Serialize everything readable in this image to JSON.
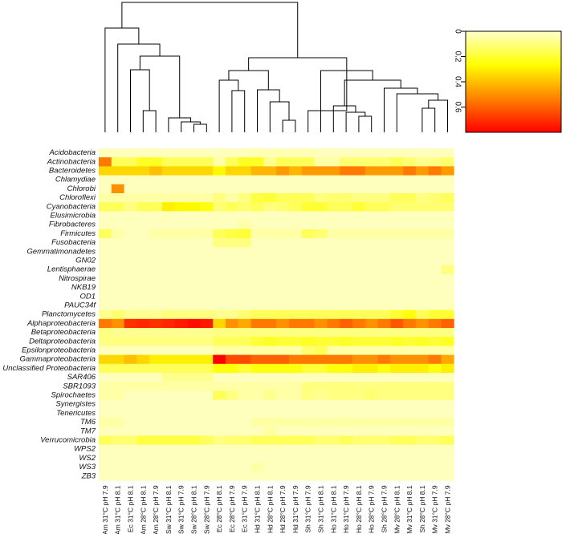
{
  "chart_data": {
    "type": "heatmap",
    "title": "",
    "xlabel": "",
    "ylabel": "",
    "rows": [
      "Acidobacteria",
      "Actinobacteria",
      "Bacteroidetes",
      "Chlamydiae",
      "Chlorobi",
      "Chloroflexi",
      "Cyanobacteria",
      "Elusimicrobia",
      "Fibrobacteres",
      "Firmicutes",
      "Fusobacteria",
      "Gemmatimonadetes",
      "GN02",
      "Lentisphaerae",
      "Nitrospirae",
      "NKB19",
      "OD1",
      "PAUC34f",
      "Planctomycetes",
      "Alphaproteobacteria",
      "Betaproteobacteria",
      "Deltaproteobacteria",
      "Epsilonproteobacteria",
      "Gammaproteobacteria",
      "Unclassified Proteobacteria",
      "SAR406",
      "SBR1093",
      "Spirochaetes",
      "Synergistes",
      "Tenericutes",
      "TM6",
      "TM7",
      "Verrucomicrobia",
      "WPS2",
      "WS2",
      "WS3",
      "ZB3"
    ],
    "columns": [
      "Am 31°C pH 7.9",
      "Am 31°C pH 8.1",
      "Ec 31°C pH 8.1",
      "Am 28°C pH 8.1",
      "Am 28°C pH 7.9",
      "Sw 31°C pH 8.1",
      "Sw 31°C pH 7.9",
      "Sw 28°C pH 8.1",
      "Sw 28°C pH 7.9",
      "Ec 28°C pH 8.1",
      "Ec 28°C pH 7.9",
      "Ec 31°C pH 7.9",
      "Hd 31°C pH 8.1",
      "Hd 28°C pH 8.1",
      "Hd 28°C pH 7.9",
      "Hd 31°C pH 7.9",
      "Sh 31°C pH 7.9",
      "Sh 31°C pH 8.1",
      "Ho 31°C pH 8.1",
      "Ho 31°C pH 7.9",
      "Ho 28°C pH 8.1",
      "Ho 28°C pH 7.9",
      "Sh 28°C pH 7.9",
      "Mv 28°C pH 8.1",
      "Mv 31°C pH 8.1",
      "Sh 28°C pH 8.1",
      "Mv 31°C pH 7.9",
      "Mv 28°C pH 7.9"
    ],
    "values": [
      [
        0.02,
        0.02,
        0.02,
        0.02,
        0.02,
        0.02,
        0.02,
        0.02,
        0.02,
        0.02,
        0.02,
        0.02,
        0.03,
        0.03,
        0.03,
        0.03,
        0.03,
        0.02,
        0.02,
        0.02,
        0.02,
        0.02,
        0.02,
        0.02,
        0.02,
        0.02,
        0.02,
        0.02
      ],
      [
        0.55,
        0.15,
        0.15,
        0.22,
        0.22,
        0.15,
        0.15,
        0.15,
        0.15,
        0.05,
        0.15,
        0.22,
        0.22,
        0.08,
        0.15,
        0.15,
        0.15,
        0.05,
        0.05,
        0.12,
        0.12,
        0.12,
        0.12,
        0.15,
        0.12,
        0.08,
        0.1,
        0.12
      ],
      [
        0.35,
        0.35,
        0.35,
        0.35,
        0.4,
        0.35,
        0.35,
        0.35,
        0.35,
        0.28,
        0.35,
        0.35,
        0.42,
        0.42,
        0.48,
        0.42,
        0.48,
        0.48,
        0.48,
        0.55,
        0.55,
        0.48,
        0.48,
        0.48,
        0.55,
        0.48,
        0.55,
        0.48
      ],
      [
        0.02,
        0.02,
        0.02,
        0.02,
        0.02,
        0.02,
        0.02,
        0.02,
        0.02,
        0.02,
        0.02,
        0.02,
        0.02,
        0.02,
        0.02,
        0.02,
        0.02,
        0.02,
        0.02,
        0.02,
        0.02,
        0.02,
        0.02,
        0.02,
        0.02,
        0.02,
        0.02,
        0.02
      ],
      [
        0.02,
        0.5,
        0.02,
        0.02,
        0.02,
        0.02,
        0.02,
        0.02,
        0.02,
        0.02,
        0.02,
        0.02,
        0.02,
        0.02,
        0.02,
        0.02,
        0.02,
        0.02,
        0.02,
        0.02,
        0.02,
        0.02,
        0.02,
        0.02,
        0.02,
        0.02,
        0.02,
        0.02
      ],
      [
        0.05,
        0.05,
        0.05,
        0.05,
        0.05,
        0.05,
        0.05,
        0.05,
        0.05,
        0.1,
        0.05,
        0.1,
        0.18,
        0.2,
        0.15,
        0.15,
        0.15,
        0.1,
        0.12,
        0.12,
        0.1,
        0.1,
        0.1,
        0.15,
        0.15,
        0.1,
        0.12,
        0.15
      ],
      [
        0.15,
        0.15,
        0.1,
        0.15,
        0.15,
        0.3,
        0.28,
        0.28,
        0.25,
        0.12,
        0.15,
        0.12,
        0.15,
        0.1,
        0.12,
        0.15,
        0.2,
        0.2,
        0.15,
        0.15,
        0.2,
        0.15,
        0.15,
        0.12,
        0.12,
        0.12,
        0.12,
        0.12
      ],
      [
        0.02,
        0.02,
        0.02,
        0.02,
        0.02,
        0.02,
        0.02,
        0.02,
        0.02,
        0.02,
        0.02,
        0.02,
        0.02,
        0.02,
        0.02,
        0.02,
        0.02,
        0.02,
        0.02,
        0.02,
        0.02,
        0.02,
        0.02,
        0.02,
        0.02,
        0.02,
        0.02,
        0.02
      ],
      [
        0.02,
        0.02,
        0.02,
        0.02,
        0.02,
        0.02,
        0.02,
        0.02,
        0.02,
        0.02,
        0.02,
        0.05,
        0.02,
        0.02,
        0.02,
        0.02,
        0.02,
        0.02,
        0.02,
        0.02,
        0.02,
        0.02,
        0.02,
        0.02,
        0.02,
        0.02,
        0.02,
        0.02
      ],
      [
        0.15,
        0.05,
        0.02,
        0.02,
        0.05,
        0.05,
        0.05,
        0.05,
        0.05,
        0.15,
        0.18,
        0.2,
        0.05,
        0.05,
        0.05,
        0.05,
        0.15,
        0.12,
        0.05,
        0.05,
        0.05,
        0.05,
        0.05,
        0.05,
        0.05,
        0.05,
        0.05,
        0.05
      ],
      [
        0.02,
        0.02,
        0.02,
        0.02,
        0.02,
        0.02,
        0.02,
        0.02,
        0.02,
        0.1,
        0.1,
        0.1,
        0.02,
        0.02,
        0.02,
        0.02,
        0.02,
        0.02,
        0.02,
        0.02,
        0.02,
        0.02,
        0.02,
        0.02,
        0.02,
        0.02,
        0.02,
        0.02
      ],
      [
        0.02,
        0.02,
        0.02,
        0.02,
        0.02,
        0.02,
        0.02,
        0.02,
        0.02,
        0.02,
        0.02,
        0.02,
        0.02,
        0.02,
        0.02,
        0.02,
        0.02,
        0.02,
        0.02,
        0.02,
        0.02,
        0.02,
        0.02,
        0.02,
        0.02,
        0.02,
        0.02,
        0.02
      ],
      [
        0.02,
        0.02,
        0.02,
        0.02,
        0.02,
        0.02,
        0.02,
        0.02,
        0.02,
        0.02,
        0.02,
        0.02,
        0.02,
        0.02,
        0.02,
        0.02,
        0.02,
        0.02,
        0.02,
        0.02,
        0.02,
        0.02,
        0.02,
        0.02,
        0.02,
        0.02,
        0.02,
        0.02
      ],
      [
        0.02,
        0.02,
        0.02,
        0.02,
        0.02,
        0.02,
        0.02,
        0.02,
        0.02,
        0.02,
        0.02,
        0.02,
        0.02,
        0.02,
        0.02,
        0.02,
        0.02,
        0.02,
        0.02,
        0.02,
        0.02,
        0.02,
        0.02,
        0.02,
        0.02,
        0.02,
        0.02,
        0.1
      ],
      [
        0.02,
        0.02,
        0.02,
        0.02,
        0.02,
        0.02,
        0.02,
        0.02,
        0.02,
        0.02,
        0.02,
        0.02,
        0.02,
        0.02,
        0.02,
        0.02,
        0.02,
        0.02,
        0.02,
        0.02,
        0.02,
        0.02,
        0.02,
        0.02,
        0.02,
        0.02,
        0.02,
        0.02
      ],
      [
        0.02,
        0.02,
        0.02,
        0.02,
        0.02,
        0.02,
        0.02,
        0.02,
        0.02,
        0.02,
        0.02,
        0.02,
        0.02,
        0.02,
        0.02,
        0.02,
        0.02,
        0.02,
        0.02,
        0.02,
        0.02,
        0.02,
        0.02,
        0.02,
        0.02,
        0.02,
        0.02,
        0.02
      ],
      [
        0.02,
        0.02,
        0.02,
        0.02,
        0.02,
        0.02,
        0.02,
        0.02,
        0.02,
        0.02,
        0.02,
        0.02,
        0.02,
        0.02,
        0.02,
        0.02,
        0.02,
        0.02,
        0.02,
        0.02,
        0.02,
        0.02,
        0.02,
        0.02,
        0.02,
        0.02,
        0.02,
        0.02
      ],
      [
        0.02,
        0.02,
        0.02,
        0.02,
        0.02,
        0.02,
        0.02,
        0.02,
        0.02,
        0.02,
        0.02,
        0.02,
        0.02,
        0.02,
        0.02,
        0.02,
        0.02,
        0.02,
        0.02,
        0.02,
        0.02,
        0.02,
        0.02,
        0.02,
        0.02,
        0.02,
        0.02,
        0.02
      ],
      [
        0.08,
        0.12,
        0.08,
        0.08,
        0.08,
        0.1,
        0.1,
        0.1,
        0.1,
        0.08,
        0.08,
        0.12,
        0.15,
        0.15,
        0.15,
        0.15,
        0.15,
        0.15,
        0.15,
        0.15,
        0.15,
        0.15,
        0.15,
        0.2,
        0.25,
        0.15,
        0.2,
        0.2
      ],
      [
        0.55,
        0.5,
        0.7,
        0.72,
        0.7,
        0.72,
        0.75,
        0.78,
        0.75,
        0.35,
        0.5,
        0.45,
        0.55,
        0.55,
        0.5,
        0.55,
        0.55,
        0.5,
        0.55,
        0.6,
        0.55,
        0.5,
        0.55,
        0.62,
        0.55,
        0.5,
        0.55,
        0.6
      ],
      [
        0.1,
        0.08,
        0.08,
        0.08,
        0.08,
        0.08,
        0.08,
        0.08,
        0.08,
        0.1,
        0.1,
        0.1,
        0.1,
        0.1,
        0.1,
        0.1,
        0.1,
        0.1,
        0.1,
        0.1,
        0.1,
        0.1,
        0.1,
        0.1,
        0.1,
        0.1,
        0.1,
        0.1
      ],
      [
        0.1,
        0.1,
        0.1,
        0.1,
        0.1,
        0.1,
        0.1,
        0.1,
        0.1,
        0.15,
        0.15,
        0.15,
        0.2,
        0.22,
        0.2,
        0.2,
        0.22,
        0.2,
        0.2,
        0.22,
        0.2,
        0.2,
        0.2,
        0.22,
        0.2,
        0.22,
        0.2,
        0.22
      ],
      [
        0.02,
        0.02,
        0.02,
        0.02,
        0.02,
        0.02,
        0.02,
        0.02,
        0.02,
        0.05,
        0.05,
        0.05,
        0.05,
        0.05,
        0.05,
        0.05,
        0.12,
        0.15,
        0.05,
        0.05,
        0.05,
        0.05,
        0.05,
        0.05,
        0.05,
        0.05,
        0.05,
        0.05
      ],
      [
        0.35,
        0.35,
        0.4,
        0.35,
        0.3,
        0.3,
        0.3,
        0.3,
        0.3,
        0.8,
        0.65,
        0.65,
        0.6,
        0.6,
        0.6,
        0.55,
        0.55,
        0.55,
        0.55,
        0.55,
        0.5,
        0.5,
        0.55,
        0.5,
        0.5,
        0.5,
        0.55,
        0.45
      ],
      [
        0.15,
        0.15,
        0.15,
        0.15,
        0.15,
        0.15,
        0.15,
        0.15,
        0.15,
        0.25,
        0.25,
        0.2,
        0.25,
        0.25,
        0.25,
        0.25,
        0.2,
        0.2,
        0.25,
        0.25,
        0.3,
        0.3,
        0.25,
        0.3,
        0.3,
        0.3,
        0.25,
        0.3
      ],
      [
        0.02,
        0.02,
        0.02,
        0.02,
        0.02,
        0.08,
        0.08,
        0.08,
        0.08,
        0.02,
        0.02,
        0.02,
        0.02,
        0.02,
        0.02,
        0.02,
        0.02,
        0.02,
        0.02,
        0.02,
        0.02,
        0.02,
        0.02,
        0.02,
        0.02,
        0.02,
        0.02,
        0.02
      ],
      [
        0.05,
        0.05,
        0.05,
        0.05,
        0.05,
        0.05,
        0.05,
        0.05,
        0.05,
        0.05,
        0.05,
        0.05,
        0.05,
        0.05,
        0.05,
        0.05,
        0.1,
        0.1,
        0.1,
        0.1,
        0.1,
        0.1,
        0.1,
        0.1,
        0.1,
        0.1,
        0.1,
        0.1
      ],
      [
        0.05,
        0.05,
        0.02,
        0.02,
        0.02,
        0.02,
        0.02,
        0.02,
        0.02,
        0.15,
        0.1,
        0.05,
        0.05,
        0.08,
        0.05,
        0.05,
        0.1,
        0.08,
        0.1,
        0.1,
        0.1,
        0.12,
        0.1,
        0.1,
        0.1,
        0.1,
        0.1,
        0.1
      ],
      [
        0.02,
        0.02,
        0.02,
        0.02,
        0.02,
        0.02,
        0.02,
        0.02,
        0.02,
        0.02,
        0.02,
        0.02,
        0.02,
        0.02,
        0.02,
        0.02,
        0.02,
        0.02,
        0.02,
        0.02,
        0.02,
        0.02,
        0.02,
        0.02,
        0.02,
        0.02,
        0.02,
        0.02
      ],
      [
        0.02,
        0.02,
        0.02,
        0.02,
        0.02,
        0.02,
        0.02,
        0.02,
        0.02,
        0.02,
        0.02,
        0.02,
        0.02,
        0.02,
        0.02,
        0.02,
        0.02,
        0.02,
        0.02,
        0.02,
        0.02,
        0.02,
        0.02,
        0.02,
        0.02,
        0.02,
        0.02,
        0.02
      ],
      [
        0.05,
        0.05,
        0.02,
        0.02,
        0.02,
        0.02,
        0.02,
        0.02,
        0.02,
        0.02,
        0.02,
        0.02,
        0.05,
        0.05,
        0.05,
        0.05,
        0.05,
        0.05,
        0.05,
        0.05,
        0.05,
        0.05,
        0.05,
        0.05,
        0.05,
        0.05,
        0.05,
        0.05
      ],
      [
        0.02,
        0.02,
        0.02,
        0.02,
        0.02,
        0.02,
        0.02,
        0.02,
        0.02,
        0.02,
        0.02,
        0.02,
        0.02,
        0.05,
        0.02,
        0.02,
        0.02,
        0.02,
        0.02,
        0.02,
        0.02,
        0.02,
        0.02,
        0.02,
        0.02,
        0.02,
        0.02,
        0.02
      ],
      [
        0.15,
        0.12,
        0.12,
        0.18,
        0.18,
        0.18,
        0.18,
        0.18,
        0.15,
        0.1,
        0.12,
        0.12,
        0.15,
        0.15,
        0.15,
        0.15,
        0.15,
        0.12,
        0.12,
        0.15,
        0.12,
        0.12,
        0.12,
        0.15,
        0.15,
        0.12,
        0.12,
        0.15
      ],
      [
        0.02,
        0.02,
        0.02,
        0.02,
        0.02,
        0.02,
        0.02,
        0.02,
        0.02,
        0.02,
        0.02,
        0.02,
        0.02,
        0.02,
        0.02,
        0.02,
        0.02,
        0.02,
        0.02,
        0.02,
        0.02,
        0.02,
        0.02,
        0.02,
        0.02,
        0.02,
        0.02,
        0.02
      ],
      [
        0.02,
        0.02,
        0.02,
        0.02,
        0.02,
        0.02,
        0.02,
        0.02,
        0.02,
        0.02,
        0.02,
        0.02,
        0.02,
        0.02,
        0.02,
        0.02,
        0.02,
        0.02,
        0.02,
        0.02,
        0.02,
        0.02,
        0.02,
        0.02,
        0.02,
        0.02,
        0.02,
        0.02
      ],
      [
        0.02,
        0.02,
        0.02,
        0.02,
        0.02,
        0.02,
        0.02,
        0.02,
        0.02,
        0.02,
        0.02,
        0.02,
        0.05,
        0.02,
        0.02,
        0.02,
        0.02,
        0.02,
        0.02,
        0.02,
        0.02,
        0.02,
        0.02,
        0.02,
        0.02,
        0.02,
        0.02,
        0.02
      ],
      [
        0.02,
        0.02,
        0.02,
        0.02,
        0.02,
        0.02,
        0.02,
        0.02,
        0.02,
        0.02,
        0.02,
        0.02,
        0.02,
        0.02,
        0.02,
        0.02,
        0.02,
        0.02,
        0.02,
        0.02,
        0.02,
        0.02,
        0.02,
        0.02,
        0.02,
        0.02,
        0.02,
        0.02
      ]
    ],
    "value_range": [
      0,
      0.8
    ],
    "colorscale": [
      "#ffffcc",
      "#ffff00",
      "#ff8000",
      "#ff0000"
    ],
    "color_key": {
      "ticks": [
        0,
        0.2,
        0.4,
        0.6
      ],
      "tick_labels": [
        "0",
        "0.2",
        "0.4",
        "0.6"
      ]
    },
    "column_dendrogram": true
  }
}
